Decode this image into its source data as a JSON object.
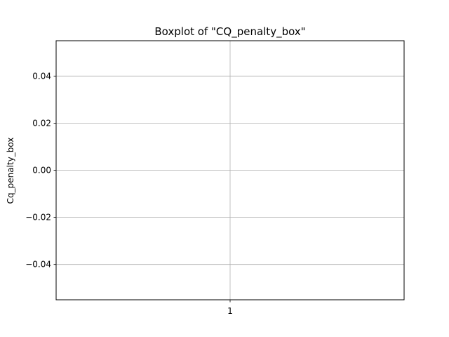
{
  "chart_data": {
    "type": "boxplot",
    "title": "Boxplot of \"CQ_penalty_box\"",
    "xlabel": "",
    "ylabel": "Cq_penalty_box",
    "categories": [
      "1"
    ],
    "ylim": [
      -0.055,
      0.055
    ],
    "y_ticks": [
      -0.04,
      -0.02,
      0.0,
      0.02,
      0.04
    ],
    "y_tick_labels": [
      "−0.04",
      "−0.02",
      "0.00",
      "0.02",
      "0.04"
    ],
    "series": [],
    "grid": true,
    "colors": {
      "grid": "#b0b0b0",
      "axes": "#000000",
      "background": "#ffffff"
    }
  }
}
